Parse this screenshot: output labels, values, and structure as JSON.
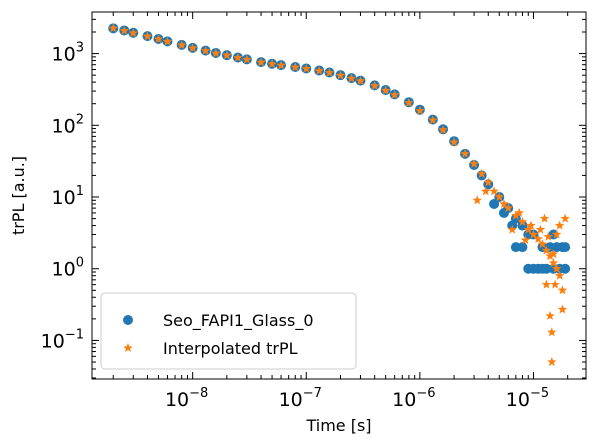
{
  "chart_data": {
    "type": "scatter",
    "xlabel": "Time [s]",
    "ylabel": "trPL [a.u.]",
    "xscale": "log",
    "yscale": "log",
    "xlim": [
      1.3e-09,
      2.9e-05
    ],
    "ylim": [
      0.029,
      3800
    ],
    "grid": false,
    "legend_position": "lower-left",
    "x_ticks": [
      {
        "value": 1e-08,
        "base": "10",
        "exp": "−8"
      },
      {
        "value": 1e-07,
        "base": "10",
        "exp": "−7"
      },
      {
        "value": 1e-06,
        "base": "10",
        "exp": "−6"
      },
      {
        "value": 1e-05,
        "base": "10",
        "exp": "−5"
      }
    ],
    "y_ticks": [
      {
        "value": 1000,
        "base": "10",
        "exp": "3"
      },
      {
        "value": 100,
        "base": "10",
        "exp": "2"
      },
      {
        "value": 10,
        "base": "10",
        "exp": "1"
      },
      {
        "value": 1,
        "base": "10",
        "exp": "0"
      },
      {
        "value": 0.1,
        "base": "10",
        "exp": "−1"
      }
    ],
    "series": [
      {
        "name": "Seo_FAPI1_Glass_0",
        "marker": "circle",
        "color": "#1f77b4",
        "points": [
          [
            2e-09,
            2250
          ],
          [
            2.5e-09,
            2100
          ],
          [
            3e-09,
            1950
          ],
          [
            4e-09,
            1750
          ],
          [
            5e-09,
            1600
          ],
          [
            6e-09,
            1480
          ],
          [
            8e-09,
            1320
          ],
          [
            1e-08,
            1200
          ],
          [
            1.3e-08,
            1100
          ],
          [
            1.6e-08,
            1020
          ],
          [
            2e-08,
            950
          ],
          [
            2.5e-08,
            880
          ],
          [
            3e-08,
            830
          ],
          [
            4e-08,
            760
          ],
          [
            5e-08,
            720
          ],
          [
            6e-08,
            690
          ],
          [
            8e-08,
            650
          ],
          [
            1e-07,
            620
          ],
          [
            1.3e-07,
            580
          ],
          [
            1.6e-07,
            545
          ],
          [
            2e-07,
            500
          ],
          [
            2.5e-07,
            455
          ],
          [
            3e-07,
            420
          ],
          [
            4e-07,
            360
          ],
          [
            5e-07,
            310
          ],
          [
            6e-07,
            270
          ],
          [
            8e-07,
            210
          ],
          [
            1e-06,
            165
          ],
          [
            1.3e-06,
            120
          ],
          [
            1.6e-06,
            88
          ],
          [
            2e-06,
            60
          ],
          [
            2.5e-06,
            40
          ],
          [
            3e-06,
            28
          ],
          [
            3.5e-06,
            20
          ],
          [
            4e-06,
            15
          ],
          [
            5e-06,
            10
          ],
          [
            6e-06,
            7
          ],
          [
            7e-06,
            5
          ],
          [
            8e-06,
            4
          ],
          [
            9e-06,
            3
          ],
          [
            1e-05,
            3
          ],
          [
            1.2e-05,
            2
          ],
          [
            1.4e-05,
            2
          ],
          [
            1.6e-05,
            2
          ],
          [
            1.8e-05,
            2
          ],
          [
            7e-06,
            2
          ],
          [
            8e-06,
            2
          ],
          [
            9e-06,
            1
          ],
          [
            1e-05,
            1
          ],
          [
            1.1e-05,
            1
          ],
          [
            1.2e-05,
            1
          ],
          [
            1.3e-05,
            1
          ],
          [
            1.5e-05,
            1
          ],
          [
            1.7e-05,
            1
          ],
          [
            1.9e-05,
            1
          ],
          [
            4.5e-06,
            8
          ],
          [
            5.5e-06,
            6
          ],
          [
            6.5e-06,
            4
          ],
          [
            1.5e-05,
            3
          ],
          [
            1.9e-05,
            2
          ]
        ]
      },
      {
        "name": "Interpolated trPL",
        "marker": "star",
        "color": "#ff7f0e",
        "points": [
          [
            2e-09,
            2250
          ],
          [
            2.5e-09,
            2080
          ],
          [
            3e-09,
            1930
          ],
          [
            4e-09,
            1740
          ],
          [
            5e-09,
            1590
          ],
          [
            6e-09,
            1470
          ],
          [
            8e-09,
            1310
          ],
          [
            1e-08,
            1190
          ],
          [
            1.3e-08,
            1090
          ],
          [
            1.6e-08,
            1010
          ],
          [
            2e-08,
            945
          ],
          [
            2.5e-08,
            875
          ],
          [
            3e-08,
            825
          ],
          [
            4e-08,
            755
          ],
          [
            5e-08,
            715
          ],
          [
            6e-08,
            685
          ],
          [
            8e-08,
            645
          ],
          [
            1e-07,
            615
          ],
          [
            1.3e-07,
            575
          ],
          [
            1.6e-07,
            540
          ],
          [
            2e-07,
            495
          ],
          [
            2.5e-07,
            450
          ],
          [
            3e-07,
            415
          ],
          [
            4e-07,
            355
          ],
          [
            5e-07,
            305
          ],
          [
            6e-07,
            265
          ],
          [
            8e-07,
            205
          ],
          [
            1e-06,
            160
          ],
          [
            1.3e-06,
            118
          ],
          [
            1.6e-06,
            86
          ],
          [
            2e-06,
            58
          ],
          [
            2.5e-06,
            40
          ],
          [
            3e-06,
            29
          ],
          [
            3.5e-06,
            21
          ],
          [
            4e-06,
            16
          ],
          [
            4.5e-06,
            12
          ],
          [
            5e-06,
            10
          ],
          [
            5.5e-06,
            8
          ],
          [
            6e-06,
            7
          ],
          [
            7e-06,
            5.5
          ],
          [
            8e-06,
            4.5
          ],
          [
            9e-06,
            3.5
          ],
          [
            1e-05,
            3
          ],
          [
            1.1e-05,
            2.6
          ],
          [
            1.2e-05,
            2.2
          ],
          [
            1.3e-05,
            1.8
          ],
          [
            1.4e-05,
            1.5
          ],
          [
            1.5e-05,
            1.2
          ],
          [
            1.6e-05,
            1.0
          ],
          [
            1.7e-05,
            0.8
          ],
          [
            1.8e-05,
            0.5
          ],
          [
            1.3e-05,
            0.6
          ],
          [
            1.4e-05,
            0.22
          ],
          [
            1.45e-05,
            0.13
          ],
          [
            1.55e-05,
            0.6
          ],
          [
            1.8e-05,
            0.27
          ],
          [
            1.45e-05,
            0.05
          ],
          [
            1.6e-05,
            3
          ],
          [
            1.7e-05,
            4
          ],
          [
            1.9e-05,
            5
          ],
          [
            3.2e-06,
            9
          ],
          [
            3.8e-06,
            12
          ],
          [
            6.5e-06,
            3.5
          ],
          [
            7.5e-06,
            6
          ],
          [
            8.5e-06,
            2.5
          ],
          [
            9.5e-06,
            4
          ],
          [
            1.15e-05,
            3.5
          ],
          [
            1.25e-05,
            5
          ],
          [
            1.35e-05,
            2.8
          ],
          [
            1.5e-05,
            1.6
          ]
        ]
      }
    ]
  }
}
